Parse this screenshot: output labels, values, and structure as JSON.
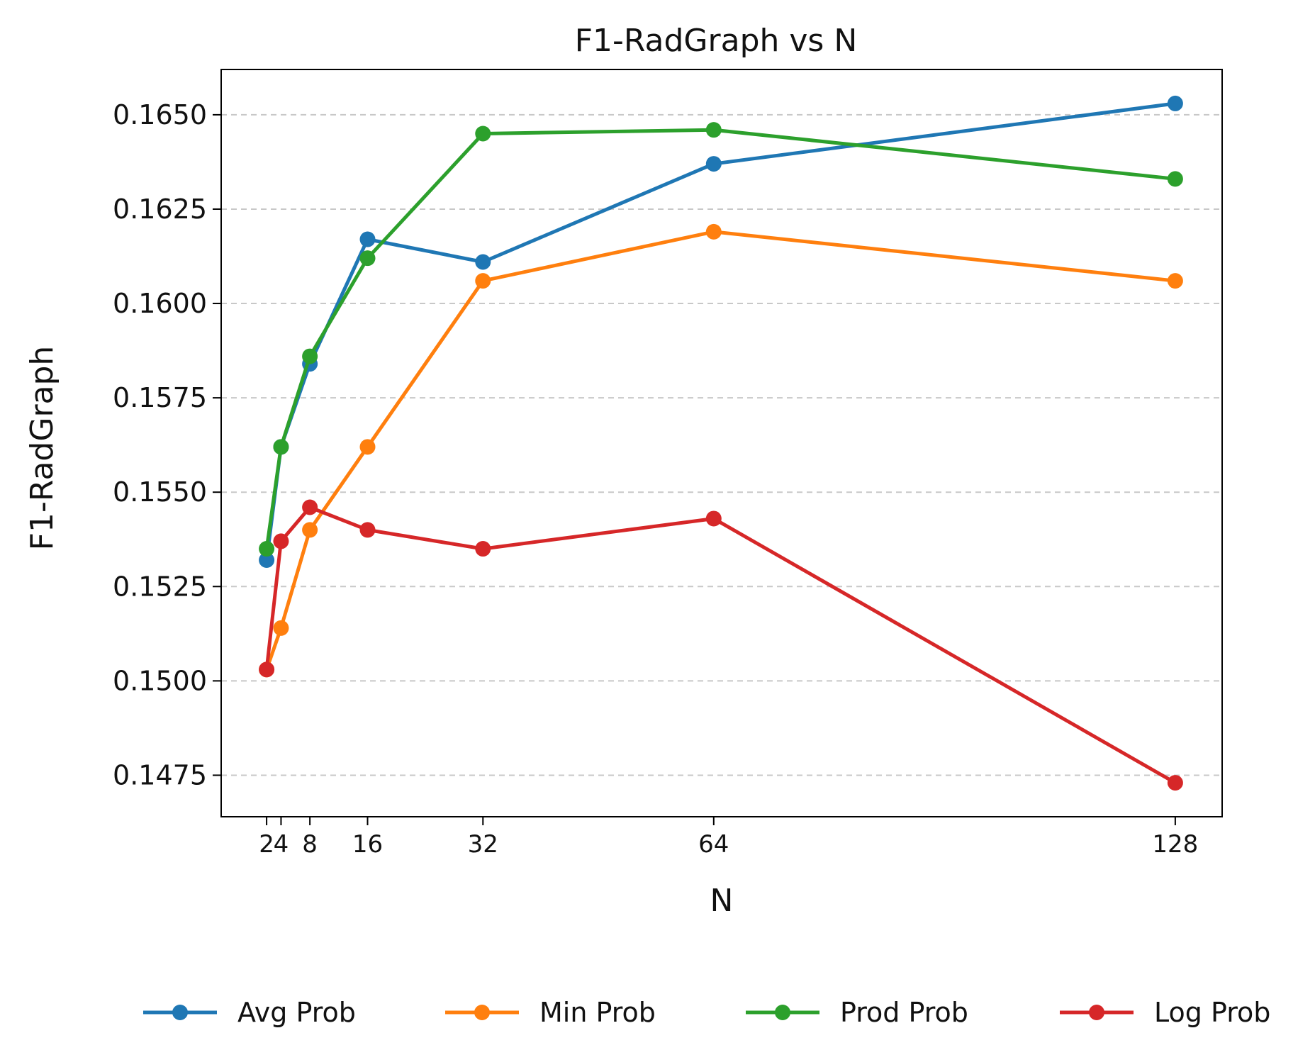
{
  "chart_data": {
    "type": "line",
    "title": "F1-RadGraph vs N",
    "xlabel": "N",
    "ylabel": "F1-RadGraph",
    "x": [
      2,
      4,
      8,
      16,
      32,
      64,
      128
    ],
    "xtick_labels": [
      "2",
      "4",
      "8",
      "16",
      "32",
      "64",
      "128"
    ],
    "xlim": [
      -4.3,
      134.5
    ],
    "ylim": [
      0.1464,
      0.1662
    ],
    "yticks": [
      0.1475,
      0.15,
      0.1525,
      0.155,
      0.1575,
      0.16,
      0.1625,
      0.165
    ],
    "ytick_labels": [
      "0.1475",
      "0.1500",
      "0.1525",
      "0.1550",
      "0.1575",
      "0.1600",
      "0.1625",
      "0.1650"
    ],
    "grid": "y-dashed",
    "legend_position": "bottom",
    "series": [
      {
        "name": "Avg Prob",
        "color": "#1f77b4",
        "values": [
          0.1532,
          0.1562,
          0.1584,
          0.1617,
          0.1611,
          0.1637,
          0.1653
        ]
      },
      {
        "name": "Min Prob",
        "color": "#ff7f0e",
        "values": [
          0.1503,
          0.1514,
          0.154,
          0.1562,
          0.1606,
          0.1619,
          0.1606
        ]
      },
      {
        "name": "Prod Prob",
        "color": "#2ca02c",
        "values": [
          0.1535,
          0.1562,
          0.1586,
          0.1612,
          0.1645,
          0.1646,
          0.1633
        ]
      },
      {
        "name": "Log Prob",
        "color": "#d62728",
        "values": [
          0.1503,
          0.1537,
          0.1546,
          0.154,
          0.1535,
          0.1543,
          0.1473
        ]
      }
    ]
  }
}
